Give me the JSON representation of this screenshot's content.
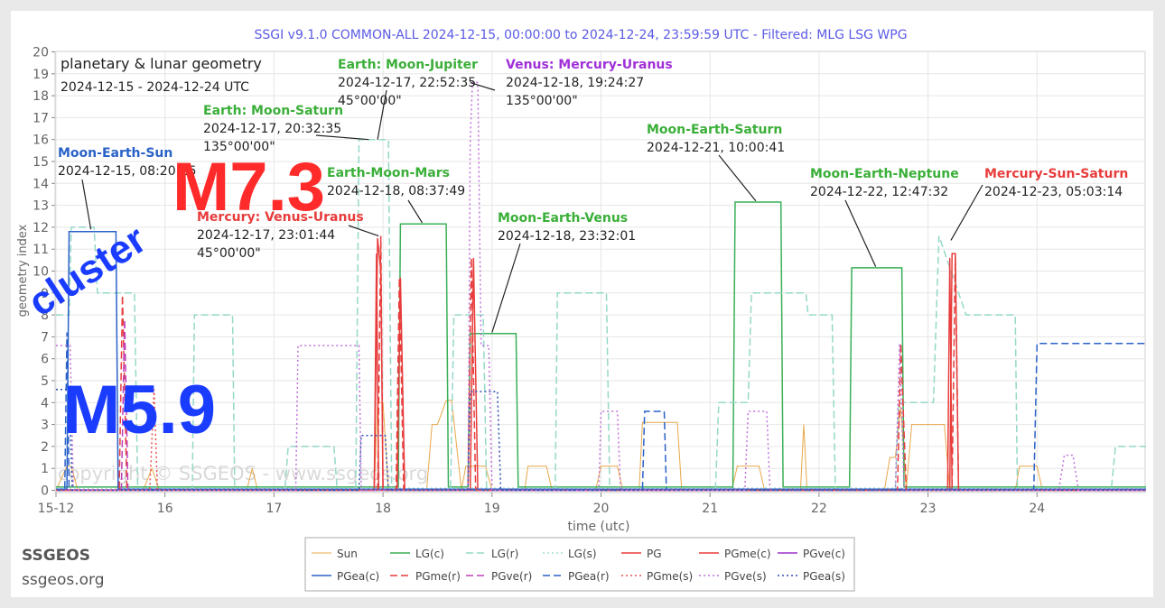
{
  "header": {
    "title": "SSGI v9.1.0 COMMON-ALL 2024-12-15, 00:00:00 to 2024-12-24, 23:59:59 UTC - Filtered: MLG LSG WPG",
    "title_color": "#5a5ae6"
  },
  "infobox": {
    "line1": "planetary & lunar geometry",
    "line2": "2024-12-15 - 2024-12-24 UTC"
  },
  "overlays": {
    "m73": "M7.3",
    "m59": "M5.9",
    "cluster": "cluster",
    "watermark": "copyright © SSGEOS - www.ssgeos.org",
    "m73_color": "#ff2a2a",
    "m59_color": "#1a3cff",
    "cluster_color": "#1a3cff"
  },
  "footer": {
    "brand": "SSGEOS",
    "url": "ssgeos.org"
  },
  "chart_data": {
    "type": "line",
    "title": "",
    "xlabel": "time (utc)",
    "ylabel": "geometry index",
    "xlim": [
      15.0,
      25.0
    ],
    "ylim": [
      0,
      20
    ],
    "x_ticks": [
      15,
      16,
      17,
      18,
      19,
      20,
      21,
      22,
      23,
      24
    ],
    "x_tick_labels": [
      "15-12",
      "16",
      "17",
      "18",
      "19",
      "20",
      "21",
      "22",
      "23",
      "24"
    ],
    "y_ticks": [
      0,
      1,
      2,
      3,
      4,
      5,
      6,
      7,
      8,
      9,
      10,
      11,
      12,
      13,
      14,
      15,
      16,
      17,
      18,
      19,
      20
    ],
    "grid": true,
    "legend_position": "bottom",
    "series": [
      {
        "name": "Sun",
        "color": "#e8a84a",
        "dash": "solid",
        "width": 1,
        "points": [
          [
            15.0,
            0
          ],
          [
            15.1,
            1.1
          ],
          [
            15.14,
            1.1
          ],
          [
            15.2,
            0
          ],
          [
            15.8,
            0
          ],
          [
            15.88,
            1.0
          ],
          [
            15.95,
            0
          ],
          [
            16.75,
            0
          ],
          [
            16.8,
            1.0
          ],
          [
            16.85,
            0
          ],
          [
            17.92,
            0
          ],
          [
            17.95,
            4
          ],
          [
            18.0,
            4
          ],
          [
            18.05,
            0
          ],
          [
            18.4,
            0
          ],
          [
            18.45,
            3
          ],
          [
            18.5,
            3
          ],
          [
            18.58,
            4.1
          ],
          [
            18.63,
            4.1
          ],
          [
            18.72,
            0
          ],
          [
            18.76,
            1.1
          ],
          [
            18.86,
            1.1
          ],
          [
            18.94,
            1.1
          ],
          [
            19.0,
            0
          ],
          [
            19.3,
            0
          ],
          [
            19.33,
            1.1
          ],
          [
            19.5,
            1.1
          ],
          [
            19.55,
            0
          ],
          [
            19.95,
            0
          ],
          [
            20.0,
            1.1
          ],
          [
            20.15,
            1.1
          ],
          [
            20.2,
            0
          ],
          [
            20.35,
            0
          ],
          [
            20.38,
            3.1
          ],
          [
            20.7,
            3.1
          ],
          [
            20.74,
            0
          ],
          [
            21.2,
            0
          ],
          [
            21.25,
            1.1
          ],
          [
            21.45,
            1.1
          ],
          [
            21.5,
            0
          ],
          [
            21.83,
            0
          ],
          [
            21.86,
            3
          ],
          [
            21.89,
            0
          ],
          [
            22.6,
            0
          ],
          [
            22.65,
            1.5
          ],
          [
            22.7,
            1.5
          ],
          [
            22.75,
            3.8
          ],
          [
            22.8,
            0
          ],
          [
            22.85,
            3.0
          ],
          [
            23.15,
            3.0
          ],
          [
            23.2,
            0
          ],
          [
            23.8,
            0
          ],
          [
            23.84,
            1.1
          ],
          [
            24.0,
            1.1
          ],
          [
            24.05,
            0
          ],
          [
            25.0,
            0
          ]
        ]
      },
      {
        "name": "LG(c)",
        "color": "#3aaf58",
        "dash": "solid",
        "width": 1.5,
        "points": [
          [
            15.0,
            0.15
          ],
          [
            18.14,
            0.15
          ],
          [
            18.16,
            12.15
          ],
          [
            18.58,
            12.15
          ],
          [
            18.6,
            0.15
          ],
          [
            18.78,
            0.15
          ],
          [
            18.8,
            7.15
          ],
          [
            19.22,
            7.15
          ],
          [
            19.24,
            0.15
          ],
          [
            21.21,
            0.15
          ],
          [
            21.23,
            13.15
          ],
          [
            21.65,
            13.15
          ],
          [
            21.67,
            0.15
          ],
          [
            22.28,
            0.15
          ],
          [
            22.3,
            10.15
          ],
          [
            22.76,
            10.15
          ],
          [
            22.78,
            0.15
          ],
          [
            25.0,
            0.15
          ]
        ]
      },
      {
        "name": "LG(r)",
        "color": "#95d8c8",
        "dash": "8,4",
        "width": 1.5,
        "points": [
          [
            15.0,
            8
          ],
          [
            15.12,
            8
          ],
          [
            15.14,
            12
          ],
          [
            15.35,
            12
          ],
          [
            15.38,
            9
          ],
          [
            15.72,
            9
          ],
          [
            15.75,
            0
          ],
          [
            16.25,
            0
          ],
          [
            16.27,
            8
          ],
          [
            16.62,
            8
          ],
          [
            16.64,
            0
          ],
          [
            17.1,
            0
          ],
          [
            17.13,
            2
          ],
          [
            17.55,
            2
          ],
          [
            17.58,
            0
          ],
          [
            17.75,
            0
          ],
          [
            17.78,
            16
          ],
          [
            18.05,
            16
          ],
          [
            18.08,
            0
          ],
          [
            18.62,
            0
          ],
          [
            18.65,
            8
          ],
          [
            18.92,
            8
          ],
          [
            18.95,
            0
          ],
          [
            19.58,
            0
          ],
          [
            19.6,
            9
          ],
          [
            20.05,
            9
          ],
          [
            20.08,
            0
          ],
          [
            21.05,
            0
          ],
          [
            21.08,
            4
          ],
          [
            21.35,
            4
          ],
          [
            21.38,
            9
          ],
          [
            21.88,
            9
          ],
          [
            21.9,
            8
          ],
          [
            22.12,
            8
          ],
          [
            22.15,
            0
          ],
          [
            22.7,
            0
          ],
          [
            22.73,
            4
          ],
          [
            23.05,
            4
          ],
          [
            23.1,
            11.6
          ],
          [
            23.35,
            8
          ],
          [
            23.8,
            8
          ],
          [
            23.82,
            0
          ],
          [
            24.68,
            0
          ],
          [
            24.72,
            2
          ],
          [
            25.0,
            2
          ]
        ]
      },
      {
        "name": "LG(s)",
        "color": "#a8dcd0",
        "dash": "2,3",
        "width": 1.5,
        "points": [
          [
            15.0,
            0.1
          ],
          [
            25.0,
            0.1
          ]
        ]
      },
      {
        "name": "PG",
        "color": "#e83c3c",
        "dash": "solid",
        "width": 1.5,
        "points": [
          [
            15.0,
            0
          ],
          [
            17.92,
            0
          ],
          [
            17.95,
            11.5
          ],
          [
            17.98,
            10
          ],
          [
            18.0,
            0
          ],
          [
            18.13,
            0
          ],
          [
            18.16,
            9.7
          ],
          [
            18.2,
            0
          ],
          [
            18.8,
            0
          ],
          [
            18.83,
            10.6
          ],
          [
            18.87,
            0
          ],
          [
            23.2,
            0
          ],
          [
            23.22,
            10.8
          ],
          [
            23.25,
            10.8
          ],
          [
            23.28,
            0
          ],
          [
            25.0,
            0
          ]
        ]
      },
      {
        "name": "PGme(c)",
        "color": "#e83c3c",
        "dash": "solid",
        "width": 1.5,
        "points": [
          [
            15.0,
            0
          ],
          [
            17.92,
            0
          ],
          [
            17.94,
            10.8
          ],
          [
            17.96,
            0
          ],
          [
            23.18,
            0
          ],
          [
            23.2,
            10.6
          ],
          [
            23.22,
            0
          ],
          [
            25.0,
            0
          ]
        ]
      },
      {
        "name": "PGve(c)",
        "color": "#9b30cc",
        "dash": "solid",
        "width": 1.5,
        "points": [
          [
            15.0,
            0.02
          ],
          [
            25.0,
            0.02
          ]
        ]
      },
      {
        "name": "PGea(c)",
        "color": "#2a62c8",
        "dash": "solid",
        "width": 1.5,
        "points": [
          [
            15.0,
            0.05
          ],
          [
            15.1,
            0.05
          ],
          [
            15.12,
            11.8
          ],
          [
            15.55,
            11.8
          ],
          [
            15.57,
            0.05
          ],
          [
            25.0,
            0.05
          ]
        ]
      },
      {
        "name": "PGme(r)",
        "color": "#e83c3c",
        "dash": "8,4",
        "width": 1.5,
        "points": [
          [
            15.0,
            0
          ],
          [
            15.58,
            0
          ],
          [
            15.61,
            8.9
          ],
          [
            15.65,
            0
          ],
          [
            17.95,
            0
          ],
          [
            17.98,
            11.6
          ],
          [
            18.0,
            0
          ],
          [
            18.12,
            0
          ],
          [
            18.15,
            9.7
          ],
          [
            18.19,
            0
          ],
          [
            18.78,
            0
          ],
          [
            18.81,
            10.6
          ],
          [
            18.85,
            0
          ],
          [
            22.72,
            0
          ],
          [
            22.75,
            6.7
          ],
          [
            22.8,
            0
          ],
          [
            23.22,
            0
          ],
          [
            23.25,
            10.8
          ],
          [
            23.28,
            0
          ],
          [
            25.0,
            0
          ]
        ]
      },
      {
        "name": "PGve(r)",
        "color": "#c040b8",
        "dash": "8,4",
        "width": 1.5,
        "points": [
          [
            15.0,
            0
          ],
          [
            15.6,
            0
          ],
          [
            15.63,
            7.8
          ],
          [
            15.66,
            0
          ],
          [
            25.0,
            0
          ]
        ]
      },
      {
        "name": "PGea(r)",
        "color": "#2a62c8",
        "dash": "8,4",
        "width": 1.5,
        "points": [
          [
            15.0,
            0
          ],
          [
            15.08,
            0
          ],
          [
            15.1,
            7.2
          ],
          [
            15.12,
            0
          ],
          [
            20.38,
            0
          ],
          [
            20.4,
            3.6
          ],
          [
            20.58,
            3.6
          ],
          [
            20.6,
            0
          ],
          [
            23.97,
            0
          ],
          [
            24.0,
            6.7
          ],
          [
            25.0,
            6.7
          ]
        ]
      },
      {
        "name": "PGme(s)",
        "color": "#e85050",
        "dash": "2,3",
        "width": 1.5,
        "points": [
          [
            15.0,
            0
          ],
          [
            15.86,
            0
          ],
          [
            15.9,
            4.6
          ],
          [
            15.93,
            0
          ],
          [
            25.0,
            0
          ]
        ]
      },
      {
        "name": "PGve(s)",
        "color": "#c070d8",
        "dash": "2,3",
        "width": 1.5,
        "points": [
          [
            15.0,
            6.6
          ],
          [
            15.13,
            6.6
          ],
          [
            15.16,
            0
          ],
          [
            17.2,
            0
          ],
          [
            17.22,
            6.6
          ],
          [
            17.78,
            6.6
          ],
          [
            17.8,
            0
          ],
          [
            18.78,
            0
          ],
          [
            18.8,
            16
          ],
          [
            18.82,
            18.6
          ],
          [
            18.87,
            18.6
          ],
          [
            18.9,
            6.6
          ],
          [
            18.97,
            6.6
          ],
          [
            19.0,
            0
          ],
          [
            19.98,
            0
          ],
          [
            20.0,
            3.6
          ],
          [
            20.15,
            3.6
          ],
          [
            20.18,
            0
          ],
          [
            21.32,
            0
          ],
          [
            21.35,
            3.6
          ],
          [
            21.52,
            3.6
          ],
          [
            21.55,
            0
          ],
          [
            22.7,
            0
          ],
          [
            22.74,
            6.7
          ],
          [
            22.78,
            0
          ],
          [
            24.2,
            0
          ],
          [
            24.25,
            1.6
          ],
          [
            24.33,
            1.6
          ],
          [
            24.38,
            0
          ],
          [
            25.0,
            0
          ]
        ]
      },
      {
        "name": "PGea(s)",
        "color": "#2a4cb0",
        "dash": "2,3",
        "width": 1.5,
        "points": [
          [
            15.0,
            4.6
          ],
          [
            15.12,
            4.6
          ],
          [
            15.15,
            0
          ],
          [
            17.78,
            0
          ],
          [
            17.8,
            2.5
          ],
          [
            18.02,
            2.5
          ],
          [
            18.05,
            0
          ],
          [
            18.78,
            0
          ],
          [
            18.8,
            4.5
          ],
          [
            19.05,
            4.5
          ],
          [
            19.08,
            0
          ],
          [
            25.0,
            0
          ]
        ]
      }
    ],
    "annotations": [
      {
        "heading": "Moon-Earth-Sun",
        "color": "#2a62c8",
        "date": "2024-12-15, 08:20:16",
        "angle": "",
        "target": [
          15.32,
          11.9
        ]
      },
      {
        "heading": "Earth:   Moon-Saturn",
        "color": "#3aaf38",
        "date": "2024-12-17, 20:32:35",
        "angle": "135°00'00\"",
        "target": [
          17.87,
          16
        ]
      },
      {
        "heading": "Earth: Moon-Jupiter",
        "color": "#3aaf38",
        "date": "2024-12-17, 22:52:35",
        "angle": "45°00'00\"",
        "target": [
          17.95,
          16
        ]
      },
      {
        "heading": "Venus:   Mercury-Uranus",
        "color": "#a030d8",
        "date": "2024-12-18, 19:24:27",
        "angle": "135°00'00\"",
        "target": [
          18.8,
          18.6
        ]
      },
      {
        "heading": "Mercury: Venus-Uranus",
        "color": "#e83c3c",
        "date": "2024-12-17, 23:01:44",
        "angle": "45°00'00\"",
        "target": [
          17.96,
          11.6
        ]
      },
      {
        "heading": "Earth-Moon-Mars",
        "color": "#3aaf38",
        "date": "2024-12-18, 08:37:49",
        "angle": "",
        "target": [
          18.36,
          12.2
        ]
      },
      {
        "heading": "Moon-Earth-Venus",
        "color": "#3aaf38",
        "date": "2024-12-18, 23:32:01",
        "angle": "",
        "target": [
          19.0,
          7.2
        ]
      },
      {
        "heading": "Moon-Earth-Saturn",
        "color": "#3aaf38",
        "date": "2024-12-21, 10:00:41",
        "angle": "",
        "target": [
          21.42,
          13.2
        ]
      },
      {
        "heading": "Moon-Earth-Neptune",
        "color": "#3aaf38",
        "date": "2024-12-22, 12:47:32",
        "angle": "",
        "target": [
          22.52,
          10.2
        ]
      },
      {
        "heading": "Mercury-Sun-Saturn",
        "color": "#e83c3c",
        "date": "2024-12-23, 05:03:14",
        "angle": "",
        "target": [
          23.21,
          11.4
        ]
      }
    ]
  }
}
